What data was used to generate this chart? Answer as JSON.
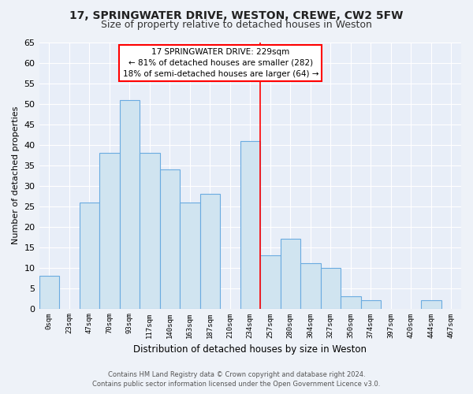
{
  "title": "17, SPRINGWATER DRIVE, WESTON, CREWE, CW2 5FW",
  "subtitle": "Size of property relative to detached houses in Weston",
  "xlabel": "Distribution of detached houses by size in Weston",
  "ylabel": "Number of detached properties",
  "bin_labels": [
    "0sqm",
    "23sqm",
    "47sqm",
    "70sqm",
    "93sqm",
    "117sqm",
    "140sqm",
    "163sqm",
    "187sqm",
    "210sqm",
    "234sqm",
    "257sqm",
    "280sqm",
    "304sqm",
    "327sqm",
    "350sqm",
    "374sqm",
    "397sqm",
    "420sqm",
    "444sqm",
    "467sqm"
  ],
  "bar_values": [
    8,
    0,
    26,
    38,
    51,
    38,
    34,
    26,
    28,
    0,
    41,
    13,
    17,
    11,
    10,
    3,
    2,
    0,
    0,
    2,
    0
  ],
  "bar_color": "#d0e4f0",
  "bar_edge_color": "#6aabe0",
  "highlight_bar_index": 10,
  "vline_x": 10,
  "ylim": [
    0,
    65
  ],
  "yticks": [
    0,
    5,
    10,
    15,
    20,
    25,
    30,
    35,
    40,
    45,
    50,
    55,
    60,
    65
  ],
  "annotation_title": "17 SPRINGWATER DRIVE: 229sqm",
  "annotation_line1": "← 81% of detached houses are smaller (282)",
  "annotation_line2": "18% of semi-detached houses are larger (64) →",
  "footer_line1": "Contains HM Land Registry data © Crown copyright and database right 2024.",
  "footer_line2": "Contains public sector information licensed under the Open Government Licence v3.0.",
  "bg_color": "#eef2f8",
  "plot_bg_color": "#e8eef8",
  "grid_color": "#ffffff",
  "title_fontsize": 10,
  "subtitle_fontsize": 9
}
